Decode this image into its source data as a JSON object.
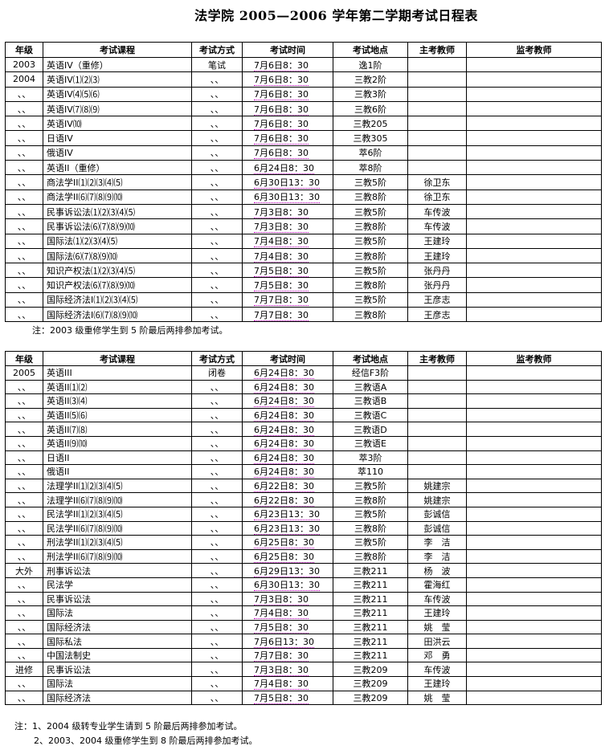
{
  "title": "法学院 2005—2006 学年第二学期考试日程表",
  "headers": [
    "年级",
    "考试课程",
    "考试方式",
    "考试时间",
    "考试地点",
    "主考教师",
    "监考教师"
  ],
  "table1": [
    [
      "2003",
      "英语IV（重修）",
      "笔试",
      "7月6日8：30",
      "逸1阶",
      "",
      ""
    ],
    [
      "2004",
      "英语IV⑴⑵⑶",
      "、、",
      "7月6日8：30",
      "三教2阶",
      "",
      ""
    ],
    [
      "、、",
      "英语IV⑷⑸⑹",
      "、、",
      "7月6日8：30",
      "三教3阶",
      "",
      ""
    ],
    [
      "、、",
      "英语IV⑺⑻⑼",
      "、、",
      "7月6日8：30",
      "三教6阶",
      "",
      ""
    ],
    [
      "、、",
      "英语IV⑽",
      "、、",
      "7月6日8：30",
      "三教205",
      "",
      ""
    ],
    [
      "、、",
      "日语IV",
      "、、",
      "7月6日8：30",
      "三教305",
      "",
      ""
    ],
    [
      "、、",
      "俄语IV",
      "、、",
      "7月6日8：30",
      "萃6阶",
      "",
      ""
    ],
    [
      "、、",
      "英语II（重修）",
      "、、",
      "6月24日8：30",
      "萃8阶",
      "",
      ""
    ],
    [
      "、、",
      "商法学II⑴⑵⑶⑷⑸",
      "、、",
      "6月30日13：30",
      "三教5阶",
      "徐卫东",
      ""
    ],
    [
      "、、",
      "商法学II⑹⑺⑻⑼⑽",
      "、、",
      "6月30日13：30",
      "三教8阶",
      "徐卫东",
      ""
    ],
    [
      "、、",
      "民事诉讼法⑴⑵⑶⑷⑸",
      "、、",
      "7月3日8：30",
      "三教5阶",
      "车传波",
      ""
    ],
    [
      "、、",
      "民事诉讼法⑹⑺⑻⑼⑽",
      "、、",
      "7月3日8：30",
      "三教8阶",
      "车传波",
      ""
    ],
    [
      "、、",
      "国际法⑴⑵⑶⑷⑸",
      "、、",
      "7月4日8：30",
      "三教5阶",
      "王建玲",
      ""
    ],
    [
      "、、",
      "国际法⑹⑺⑻⑼⑽",
      "、、",
      "7月4日8：30",
      "三教8阶",
      "王建玲",
      ""
    ],
    [
      "、、",
      "知识产权法⑴⑵⑶⑷⑸",
      "、、",
      "7月5日8：30",
      "三教5阶",
      "张丹丹",
      ""
    ],
    [
      "、、",
      "知识产权法⑹⑺⑻⑼⑽",
      "、、",
      "7月5日8：30",
      "三教8阶",
      "张丹丹",
      ""
    ],
    [
      "、、",
      "国际经济法I⑴⑵⑶⑷⑸",
      "、、",
      "7月7日8：30",
      "三教5阶",
      "王彦志",
      ""
    ],
    [
      "、、",
      "国际经济法I⑹⑺⑻⑼⑽",
      "、、",
      "7月7日8：30",
      "三教8阶",
      "王彦志",
      ""
    ]
  ],
  "note1": "注：2003 级重修学生到 5 阶最后两排参加考试。",
  "table2": [
    [
      "2005",
      "英语III",
      "闭卷",
      "6月24日8：30",
      "经信F3阶",
      "",
      ""
    ],
    [
      "、、",
      "英语II⑴⑵",
      "、、",
      "6月24日8：30",
      "三教语A",
      "",
      ""
    ],
    [
      "、、",
      "英语II⑶⑷",
      "、、",
      "6月24日8：30",
      "三教语B",
      "",
      ""
    ],
    [
      "、、",
      "英语II⑸⑹",
      "、、",
      "6月24日8：30",
      "三教语C",
      "",
      ""
    ],
    [
      "、、",
      "英语II⑺⑻",
      "、、",
      "6月24日8：30",
      "三教语D",
      "",
      ""
    ],
    [
      "、、",
      "英语II⑼⑽",
      "、、",
      "6月24日8：30",
      "三教语E",
      "",
      ""
    ],
    [
      "、、",
      "日语II",
      "、、",
      "6月24日8：30",
      "萃3阶",
      "",
      ""
    ],
    [
      "、、",
      "俄语II",
      "、、",
      "6月24日8：30",
      "萃110",
      "",
      ""
    ],
    [
      "、、",
      "法理学II⑴⑵⑶⑷⑸",
      "、、",
      "6月22日8：30",
      "三教5阶",
      "姚建宗",
      ""
    ],
    [
      "、、",
      "法理学II⑹⑺⑻⑼⑽",
      "、、",
      "6月22日8：30",
      "三教8阶",
      "姚建宗",
      ""
    ],
    [
      "、、",
      "民法学II⑴⑵⑶⑷⑸",
      "、、",
      "6月23日13：30",
      "三教5阶",
      "彭诚信",
      ""
    ],
    [
      "、、",
      "民法学II⑹⑺⑻⑼⑽",
      "、、",
      "6月23日13：30",
      "三教8阶",
      "彭诚信",
      ""
    ],
    [
      "、、",
      "刑法学II⑴⑵⑶⑷⑸",
      "、、",
      "6月25日8：30",
      "三教5阶",
      "李　洁",
      ""
    ],
    [
      "、、",
      "刑法学II⑹⑺⑻⑼⑽",
      "、、",
      "6月25日8：30",
      "三教8阶",
      "李　洁",
      ""
    ],
    [
      "大外",
      "刑事诉讼法",
      "、、",
      "6月29日13：30",
      "三教211",
      "杨　波",
      ""
    ],
    [
      "、、",
      "民法学",
      "、、",
      "6月30日13：30",
      "三教211",
      "霍海红",
      ""
    ],
    [
      "、、",
      "民事诉讼法",
      "、、",
      "7月3日8：30",
      "三教211",
      "车传波",
      ""
    ],
    [
      "、、",
      "国际法",
      "、、",
      "7月4日8：30",
      "三教211",
      "王建玲",
      ""
    ],
    [
      "、、",
      "国际经济法",
      "、、",
      "7月5日8：30",
      "三教211",
      "姚　莹",
      ""
    ],
    [
      "、、",
      "国际私法",
      "、、",
      "7月6日13：30",
      "三教211",
      "田洪云",
      ""
    ],
    [
      "、、",
      "中国法制史",
      "、、",
      "7月7日8：30",
      "三教211",
      "邓　勇",
      ""
    ],
    [
      "进修",
      "民事诉讼法",
      "、、",
      "7月3日8：30",
      "三教209",
      "车传波",
      ""
    ],
    [
      "、、",
      "国际法",
      "、、",
      "7月4日8：30",
      "三教209",
      "王建玲",
      ""
    ],
    [
      "、、",
      "国际经济法",
      "、、",
      "7月5日8：30",
      "三教209",
      "姚　莹",
      ""
    ]
  ],
  "note2_1": "注：1、2004 级转专业学生请到 5 阶最后两排参加考试。",
  "note2_2": "2、2003、2004 级重修学生到 8 阶最后两排参加考试。"
}
